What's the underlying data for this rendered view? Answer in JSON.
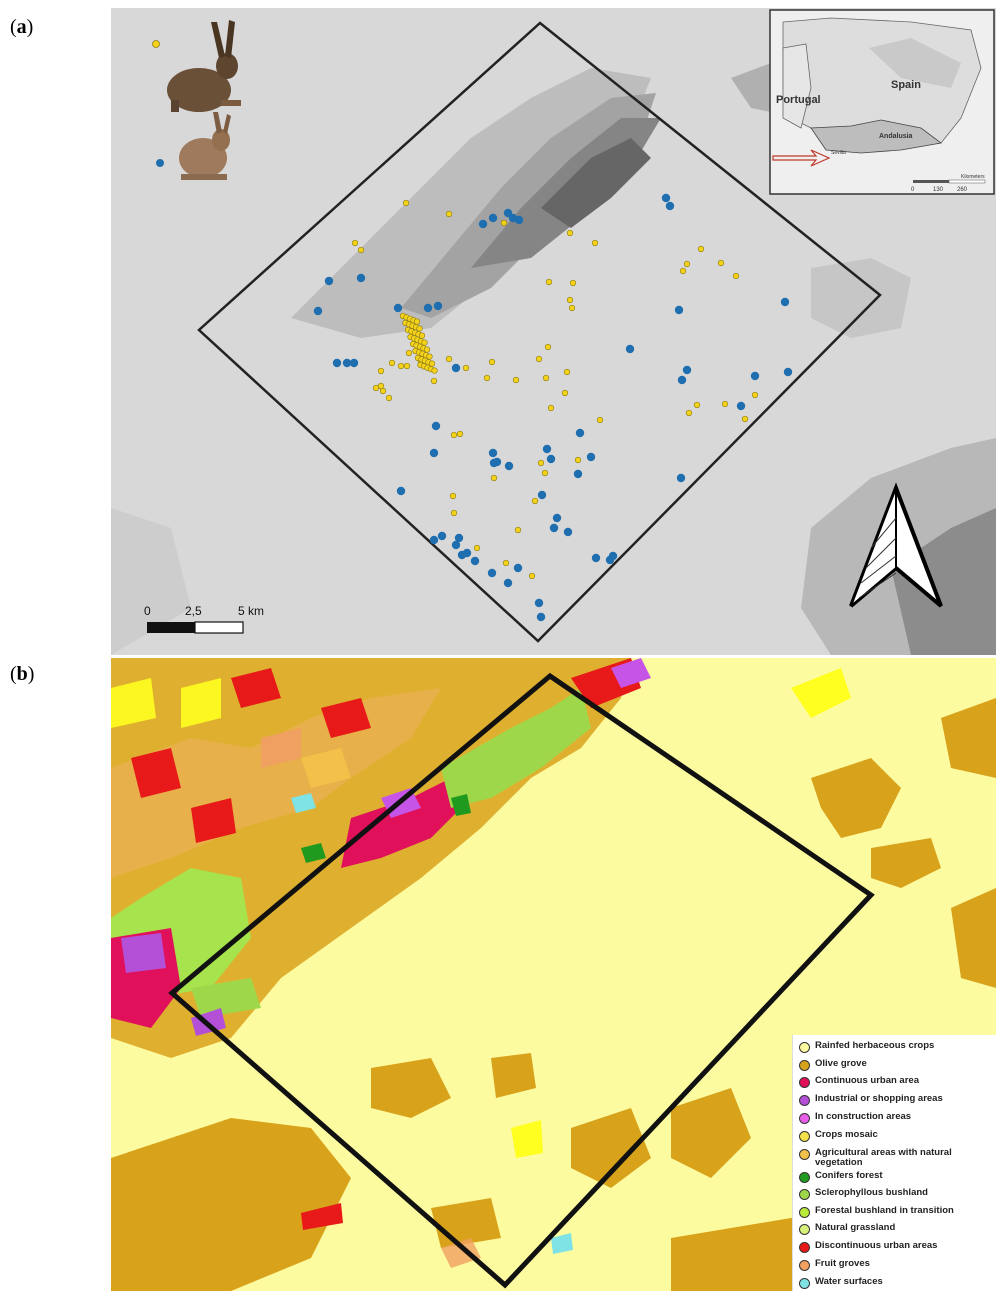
{
  "labels": {
    "a": "a",
    "b": "b"
  },
  "panel_a": {
    "inset": {
      "portugal": "Portugal",
      "spain": "Spain",
      "andalusia": "Andalusia",
      "sevilla": "Sevilla",
      "scale_unit": "Kilometers",
      "ticks": [
        "0",
        "130",
        "260"
      ]
    },
    "scalebar": {
      "ticks": [
        "0",
        "2,5",
        "5 km"
      ]
    },
    "colors": {
      "blue": "#1f6fb0",
      "yellow": "#f5d21a",
      "frame": "#222222"
    }
  },
  "panel_b": {
    "colors": {
      "background": "#fdfba0",
      "olive": "#d9a21b",
      "red": "#e8173f",
      "purple": "#c654e6",
      "green": "#a6e34c",
      "frame": "#111111"
    }
  },
  "legend": [
    {
      "label": "Rainfed herbaceous crops",
      "color": "#fdfba0"
    },
    {
      "label": "Olive grove",
      "color": "#d9a21b"
    },
    {
      "label": "Continuous urban area",
      "color": "#e0105a"
    },
    {
      "label": "Industrial or shopping areas",
      "color": "#b44fd8"
    },
    {
      "label": "In construction areas",
      "color": "#ea5fe8"
    },
    {
      "label": "Crops mosaic",
      "color": "#f7e14a"
    },
    {
      "label": "Agricultural areas with natural vegetation",
      "color": "#f3c04a"
    },
    {
      "label": "Conifers forest",
      "color": "#1f9a1f"
    },
    {
      "label": "Sclerophyllous bushland",
      "color": "#9ed84a"
    },
    {
      "label": "Forestal bushland in transition",
      "color": "#b8ea3a"
    },
    {
      "label": "Natural grassland",
      "color": "#d7f07a"
    },
    {
      "label": "Discontinuous urban areas",
      "color": "#e81919"
    },
    {
      "label": "Fruit groves",
      "color": "#f0a060"
    },
    {
      "label": "Water surfaces",
      "color": "#7fe3e6"
    }
  ]
}
